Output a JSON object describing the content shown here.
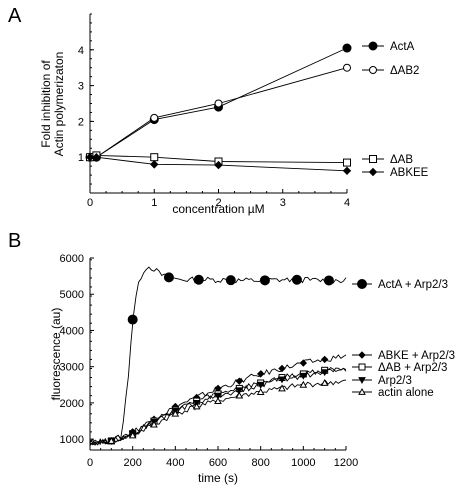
{
  "chart_data": [
    {
      "panel_label": "A",
      "type": "line",
      "xlabel": "concentration µM",
      "ylabel_lines": [
        "Fold inhibition of",
        "Actin polymerizaton"
      ],
      "xlim": [
        0,
        4
      ],
      "ylim": [
        0,
        5
      ],
      "xticks": [
        0,
        1,
        2,
        3,
        4
      ],
      "yticks": [
        1,
        2,
        3,
        4
      ],
      "grid": false,
      "legend": "right",
      "series": [
        {
          "name": "ActA",
          "marker": "filled-circle",
          "x": [
            0,
            0.1,
            1,
            2,
            4
          ],
          "y": [
            1.0,
            1.0,
            2.05,
            2.4,
            4.05
          ]
        },
        {
          "name": "ΔAB2",
          "marker": "open-circle",
          "x": [
            0,
            0.1,
            1,
            2,
            4
          ],
          "y": [
            1.0,
            1.0,
            2.1,
            2.5,
            3.5
          ]
        },
        {
          "name": "ΔAB",
          "marker": "open-square",
          "x": [
            0,
            0.1,
            1,
            2,
            4
          ],
          "y": [
            1.0,
            1.05,
            1.0,
            0.88,
            0.85
          ]
        },
        {
          "name": "ABKEE",
          "marker": "filled-diamond",
          "x": [
            0,
            0.1,
            1,
            2,
            4
          ],
          "y": [
            1.0,
            1.0,
            0.8,
            0.78,
            0.62
          ]
        }
      ]
    },
    {
      "panel_label": "B",
      "type": "line",
      "xlabel": "time (s)",
      "ylabel": "fluorescence (au)",
      "xlim": [
        0,
        1200
      ],
      "ylim": [
        700,
        6000
      ],
      "xticks": [
        0,
        200,
        400,
        600,
        800,
        1000,
        1200
      ],
      "yticks": [
        1000,
        2000,
        3000,
        4000,
        5000,
        6000
      ],
      "grid": false,
      "legend": "right",
      "series": [
        {
          "name": "ActA + Arp2/3",
          "marker": "filled-circle",
          "x": [
            0,
            50,
            100,
            150,
            180,
            200,
            220,
            240,
            260,
            280,
            300,
            330,
            360,
            400,
            450,
            500,
            600,
            700,
            800,
            900,
            1000,
            1100,
            1200
          ],
          "y": [
            900,
            920,
            950,
            1100,
            2800,
            4300,
            5100,
            5500,
            5750,
            5750,
            5700,
            5550,
            5480,
            5420,
            5400,
            5400,
            5400,
            5380,
            5380,
            5400,
            5400,
            5380,
            5380
          ],
          "marker_x": [
            200,
            370,
            510,
            660,
            820,
            970,
            1120
          ]
        },
        {
          "name": "ABKE + Arp2/3",
          "marker": "filled-diamond",
          "x": [
            0,
            100,
            200,
            300,
            400,
            500,
            600,
            700,
            800,
            900,
            1000,
            1100,
            1200
          ],
          "y": [
            900,
            950,
            1200,
            1550,
            1900,
            2150,
            2400,
            2600,
            2800,
            2950,
            3100,
            3200,
            3300
          ],
          "marker_x": [
            100,
            200,
            300,
            400,
            500,
            600,
            700,
            800,
            900,
            1000,
            1100
          ]
        },
        {
          "name": "ΔAB + Arp2/3",
          "marker": "open-square",
          "x": [
            0,
            100,
            200,
            300,
            400,
            500,
            600,
            700,
            800,
            900,
            1000,
            1100,
            1200
          ],
          "y": [
            900,
            950,
            1150,
            1500,
            1800,
            2050,
            2250,
            2400,
            2550,
            2700,
            2800,
            2900,
            2950
          ],
          "marker_x": [
            100,
            200,
            300,
            400,
            500,
            600,
            700,
            800,
            900,
            1000,
            1100
          ]
        },
        {
          "name": "Arp2/3",
          "marker": "filled-triangle-down",
          "x": [
            0,
            100,
            200,
            300,
            400,
            500,
            600,
            700,
            800,
            900,
            1000,
            1100,
            1200
          ],
          "y": [
            900,
            950,
            1150,
            1480,
            1780,
            2000,
            2200,
            2350,
            2500,
            2650,
            2750,
            2850,
            2950
          ],
          "marker_x": [
            100,
            200,
            300,
            400,
            500,
            600,
            700,
            800,
            900,
            1000,
            1100
          ]
        },
        {
          "name": "actin alone",
          "marker": "open-triangle",
          "x": [
            0,
            100,
            200,
            300,
            400,
            500,
            600,
            700,
            800,
            900,
            1000,
            1100,
            1200
          ],
          "y": [
            900,
            950,
            1100,
            1400,
            1700,
            1900,
            2050,
            2200,
            2300,
            2400,
            2500,
            2550,
            2600
          ],
          "marker_x": [
            100,
            200,
            300,
            400,
            500,
            600,
            700,
            800,
            900,
            1000,
            1100
          ]
        }
      ]
    }
  ]
}
